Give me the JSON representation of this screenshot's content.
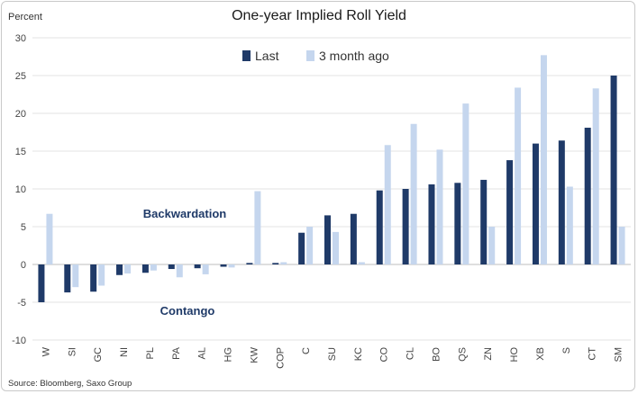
{
  "chart_data": {
    "type": "bar",
    "title": "One-year Implied Roll Yield",
    "ylabel": "Percent",
    "xlabel": "",
    "ylim": [
      -10,
      30
    ],
    "yticks": [
      -10,
      -5,
      0,
      5,
      10,
      15,
      20,
      25,
      30
    ],
    "grid": true,
    "legend_position": "top-center",
    "categories": [
      "W",
      "SI",
      "GC",
      "NI",
      "PL",
      "PA",
      "AL",
      "HG",
      "KW",
      "COP",
      "C",
      "SU",
      "KC",
      "CO",
      "CL",
      "BO",
      "QS",
      "ZN",
      "HO",
      "XB",
      "S",
      "CT",
      "SM"
    ],
    "series": [
      {
        "name": "Last",
        "color": "#1f3a68",
        "values": [
          -5.0,
          -3.7,
          -3.6,
          -1.4,
          -1.1,
          -0.6,
          -0.5,
          -0.3,
          0.2,
          0.2,
          4.2,
          6.5,
          6.7,
          9.8,
          10.0,
          10.6,
          10.8,
          11.2,
          13.8,
          16.0,
          16.4,
          18.1,
          25.0
        ]
      },
      {
        "name": "3 month ago",
        "color": "#c5d6ee",
        "values": [
          6.7,
          -3.0,
          -2.8,
          -1.2,
          -0.8,
          -1.7,
          -1.3,
          -0.4,
          9.7,
          0.3,
          5.0,
          4.3,
          0.3,
          15.8,
          18.6,
          15.2,
          21.3,
          5.0,
          23.4,
          27.7,
          10.3,
          23.3,
          5.0
        ]
      }
    ],
    "annotations": [
      "Backwardation",
      "Contango"
    ],
    "source": "Source: Bloomberg, Saxo Group"
  }
}
